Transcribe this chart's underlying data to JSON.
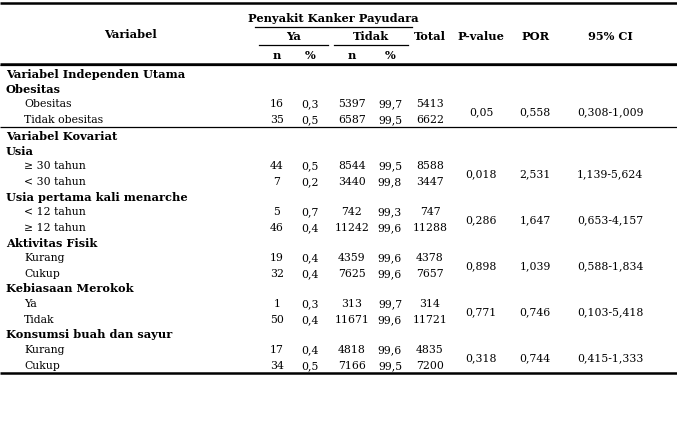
{
  "header_main": "Penyakit Kanker Payudara",
  "col_variabel": "Variabel",
  "col_ya": "Ya",
  "col_tidak": "Tidak",
  "col_total": "Total",
  "col_pvalue": "P-value",
  "col_por": "POR",
  "col_ci": "95% CI",
  "col_n1": "n",
  "col_pct1": "%",
  "col_n2": "n",
  "col_pct2": "%",
  "rows": [
    {
      "type": "section",
      "label": "Variabel Independen Utama",
      "n1": "",
      "pct1": "",
      "n2": "",
      "pct2": "",
      "total": "",
      "pvalue": "",
      "por": "",
      "ci": "",
      "span": 0
    },
    {
      "type": "subheader",
      "label": "Obesitas",
      "n1": "",
      "pct1": "",
      "n2": "",
      "pct2": "",
      "total": "",
      "pvalue": "",
      "por": "",
      "ci": "",
      "span": 0
    },
    {
      "type": "data",
      "label": "Obesitas",
      "n1": "16",
      "pct1": "0,3",
      "n2": "5397",
      "pct2": "99,7",
      "total": "5413",
      "pvalue": "0,05",
      "por": "0,558",
      "ci": "0,308-1,009",
      "span": 2
    },
    {
      "type": "data",
      "label": "Tidak obesitas",
      "n1": "35",
      "pct1": "0,5",
      "n2": "6587",
      "pct2": "99,5",
      "total": "6622",
      "pvalue": "",
      "por": "",
      "ci": "",
      "span": 0
    },
    {
      "type": "section",
      "label": "Variabel Kovariat",
      "n1": "",
      "pct1": "",
      "n2": "",
      "pct2": "",
      "total": "",
      "pvalue": "",
      "por": "",
      "ci": "",
      "span": 0
    },
    {
      "type": "subheader",
      "label": "Usia",
      "n1": "",
      "pct1": "",
      "n2": "",
      "pct2": "",
      "total": "",
      "pvalue": "",
      "por": "",
      "ci": "",
      "span": 0
    },
    {
      "type": "data",
      "label": "≥ 30 tahun",
      "n1": "44",
      "pct1": "0,5",
      "n2": "8544",
      "pct2": "99,5",
      "total": "8588",
      "pvalue": "0,018",
      "por": "2,531",
      "ci": "1,139-5,624",
      "span": 2
    },
    {
      "type": "data",
      "label": "< 30 tahun",
      "n1": "7",
      "pct1": "0,2",
      "n2": "3440",
      "pct2": "99,8",
      "total": "3447",
      "pvalue": "",
      "por": "",
      "ci": "",
      "span": 0
    },
    {
      "type": "subheader",
      "label": "Usia pertama kali menarche",
      "n1": "",
      "pct1": "",
      "n2": "",
      "pct2": "",
      "total": "",
      "pvalue": "",
      "por": "",
      "ci": "",
      "span": 0
    },
    {
      "type": "data",
      "label": "< 12 tahun",
      "n1": "5",
      "pct1": "0,7",
      "n2": "742",
      "pct2": "99,3",
      "total": "747",
      "pvalue": "0,286",
      "por": "1,647",
      "ci": "0,653-4,157",
      "span": 2
    },
    {
      "type": "data",
      "label": "≥ 12 tahun",
      "n1": "46",
      "pct1": "0,4",
      "n2": "11242",
      "pct2": "99,6",
      "total": "11288",
      "pvalue": "",
      "por": "",
      "ci": "",
      "span": 0
    },
    {
      "type": "subheader",
      "label": "Aktivitas Fisik",
      "n1": "",
      "pct1": "",
      "n2": "",
      "pct2": "",
      "total": "",
      "pvalue": "",
      "por": "",
      "ci": "",
      "span": 0
    },
    {
      "type": "data",
      "label": "Kurang",
      "n1": "19",
      "pct1": "0,4",
      "n2": "4359",
      "pct2": "99,6",
      "total": "4378",
      "pvalue": "0,898",
      "por": "1,039",
      "ci": "0,588-1,834",
      "span": 2
    },
    {
      "type": "data",
      "label": "Cukup",
      "n1": "32",
      "pct1": "0,4",
      "n2": "7625",
      "pct2": "99,6",
      "total": "7657",
      "pvalue": "",
      "por": "",
      "ci": "",
      "span": 0
    },
    {
      "type": "subheader",
      "label": "Kebiasaan Merokok",
      "n1": "",
      "pct1": "",
      "n2": "",
      "pct2": "",
      "total": "",
      "pvalue": "",
      "por": "",
      "ci": "",
      "span": 0
    },
    {
      "type": "data",
      "label": "Ya",
      "n1": "1",
      "pct1": "0,3",
      "n2": "313",
      "pct2": "99,7",
      "total": "314",
      "pvalue": "0,771",
      "por": "0,746",
      "ci": "0,103-5,418",
      "span": 2
    },
    {
      "type": "data",
      "label": "Tidak",
      "n1": "50",
      "pct1": "0,4",
      "n2": "11671",
      "pct2": "99,6",
      "total": "11721",
      "pvalue": "",
      "por": "",
      "ci": "",
      "span": 0
    },
    {
      "type": "subheader",
      "label": "Konsumsi buah dan sayur",
      "n1": "",
      "pct1": "",
      "n2": "",
      "pct2": "",
      "total": "",
      "pvalue": "",
      "por": "",
      "ci": "",
      "span": 0
    },
    {
      "type": "data",
      "label": "Kurang",
      "n1": "17",
      "pct1": "0,4",
      "n2": "4818",
      "pct2": "99,6",
      "total": "4835",
      "pvalue": "0,318",
      "por": "0,744",
      "ci": "0,415-1,333",
      "span": 2
    },
    {
      "type": "data",
      "label": "Cukup",
      "n1": "34",
      "pct1": "0,5",
      "n2": "7166",
      "pct2": "99,5",
      "total": "7200",
      "pvalue": "",
      "por": "",
      "ci": "",
      "span": 0
    }
  ],
  "bg_color": "#ffffff",
  "text_color": "#000000"
}
